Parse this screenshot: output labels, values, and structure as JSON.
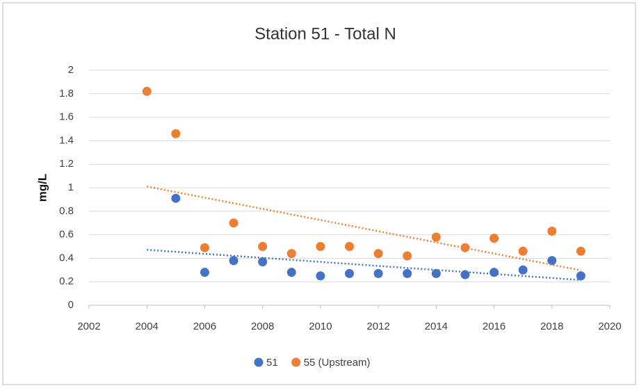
{
  "chart_data": {
    "type": "scatter",
    "title": "Station 51 - Total N",
    "ylabel": "mg/L",
    "series": [
      {
        "name": "51",
        "color": "#4472c4",
        "trendline": "linear",
        "x": [
          2005,
          2006,
          2007,
          2008,
          2009,
          2010,
          2011,
          2012,
          2013,
          2014,
          2015,
          2016,
          2017,
          2018,
          2019
        ],
        "values": [
          0.91,
          0.28,
          0.38,
          0.37,
          0.28,
          0.25,
          0.27,
          0.27,
          0.27,
          0.27,
          0.26,
          0.28,
          0.3,
          0.38,
          0.25
        ]
      },
      {
        "name": "55 (Upstream)",
        "color": "#ed7d31",
        "trendline": "linear",
        "x": [
          2004,
          2005,
          2006,
          2007,
          2008,
          2009,
          2010,
          2011,
          2012,
          2013,
          2014,
          2015,
          2016,
          2017,
          2018,
          2019
        ],
        "values": [
          1.82,
          1.46,
          0.49,
          0.7,
          0.5,
          0.44,
          0.5,
          0.5,
          0.44,
          0.42,
          0.58,
          0.49,
          0.57,
          0.46,
          0.63,
          0.46
        ]
      }
    ],
    "xlim": [
      2002,
      2020
    ],
    "xticks": [
      2002,
      2004,
      2006,
      2008,
      2010,
      2012,
      2014,
      2016,
      2018,
      2020
    ],
    "ylim": [
      0,
      2
    ],
    "yticks": [
      0,
      0.2,
      0.4,
      0.6,
      0.8,
      1,
      1.2,
      1.4,
      1.6,
      1.8,
      2
    ],
    "grid": true,
    "legend": "bottom"
  }
}
